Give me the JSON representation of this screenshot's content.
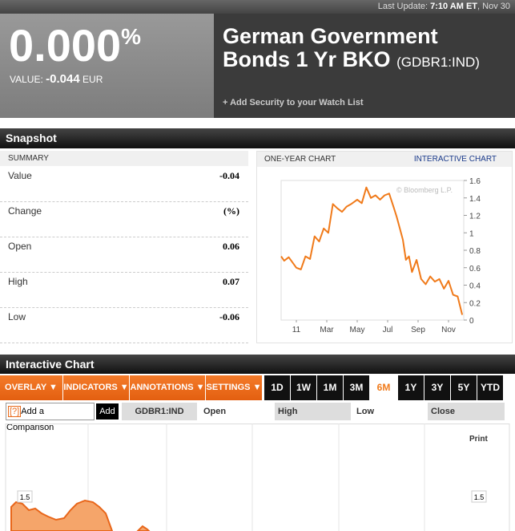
{
  "header": {
    "last_update_label": "Last Update:",
    "last_update_time": "7:10 AM ET",
    "last_update_date": ", Nov 30",
    "price": "0.000",
    "price_unit": "%",
    "value_label": "VALUE:",
    "value": "-0.044",
    "currency": "EUR",
    "name_line1": "German Government",
    "name_line2": "Bonds 1 Yr BKO",
    "ticker": "(GDBR1:IND)",
    "watchlist": "+ Add Security to your Watch List"
  },
  "snapshot": {
    "title": "Snapshot",
    "summary_title": "SUMMARY",
    "rows": [
      [
        "Value",
        "-0.04"
      ],
      [
        "Change",
        "(%)"
      ],
      [
        "Open",
        "0.06"
      ],
      [
        "High",
        "0.07"
      ],
      [
        "Low",
        "-0.06"
      ]
    ]
  },
  "chart_data": [
    {
      "type": "line",
      "title": "ONE-YEAR CHART",
      "link": "INTERACTIVE CHART",
      "watermark": "© Bloomberg L.P.",
      "color": "#f07a1a",
      "x": [
        0,
        0.2,
        0.5,
        1.0,
        1.3,
        1.6,
        1.9,
        2.2,
        2.5,
        2.8,
        3.1,
        3.4,
        3.7,
        4.0,
        4.3,
        4.6,
        5.0,
        5.3,
        5.6,
        5.9,
        6.2,
        6.5,
        6.8,
        7.1,
        7.4,
        7.6,
        7.8,
        8.0,
        8.2,
        8.4,
        8.6,
        8.9,
        9.2,
        9.5,
        9.8,
        10.1,
        10.4,
        10.7,
        11.0,
        11.3,
        11.6,
        11.9
      ],
      "values": [
        0.73,
        0.68,
        0.72,
        0.6,
        0.58,
        0.73,
        0.7,
        0.96,
        0.9,
        1.05,
        1.0,
        1.33,
        1.28,
        1.24,
        1.3,
        1.33,
        1.38,
        1.34,
        1.52,
        1.4,
        1.43,
        1.38,
        1.43,
        1.45,
        1.29,
        1.18,
        1.05,
        0.92,
        0.69,
        0.73,
        0.55,
        0.69,
        0.47,
        0.41,
        0.5,
        0.44,
        0.47,
        0.36,
        0.45,
        0.29,
        0.27,
        0.06
      ],
      "xlim": [
        0,
        12
      ],
      "ylim": [
        0,
        1.6
      ],
      "xticks": [
        {
          "value": 1,
          "label": "11"
        },
        {
          "value": 3,
          "label": "Mar"
        },
        {
          "value": 5,
          "label": "May"
        },
        {
          "value": 7,
          "label": "Jul"
        },
        {
          "value": 9,
          "label": "Sep"
        },
        {
          "value": 11,
          "label": "Nov"
        }
      ],
      "yticks": [
        0,
        0.2,
        0.4,
        0.6,
        0.8,
        1,
        1.2,
        1.4,
        1.6
      ]
    },
    {
      "type": "area",
      "title": "Interactive Chart",
      "print": "Print",
      "yticks": [
        1.5
      ]
    }
  ],
  "controls": {
    "menus": [
      "OVERLAY ▼",
      "INDICATORS ▼",
      "ANNOTATIONS ▼",
      "SETTINGS ▼"
    ],
    "ranges": [
      "1D",
      "1W",
      "1M",
      "3M",
      "6M",
      "1Y",
      "3Y",
      "5Y",
      "YTD"
    ],
    "comparison_help": "[?]",
    "comparison_label": "Add a Comparison",
    "add": "Add",
    "ticker": "GDBR1:IND",
    "columns": [
      "Open",
      "High",
      "Low",
      "Close"
    ]
  }
}
